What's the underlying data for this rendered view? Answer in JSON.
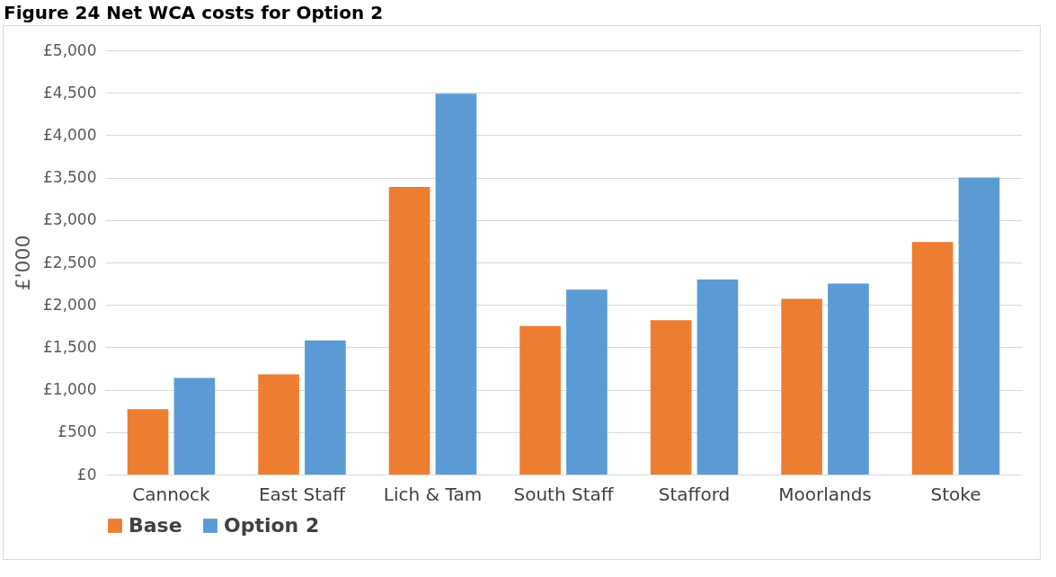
{
  "chart_data": {
    "type": "bar",
    "title": "Figure 24 Net WCA costs for Option 2",
    "ylabel": "£'000",
    "categories": [
      "Cannock",
      "East Staff",
      "Lich & Tam",
      "South Staff",
      "Stafford",
      "Moorlands",
      "Stoke"
    ],
    "series": [
      {
        "name": "Base",
        "color": "#ed7d31",
        "values": [
          770,
          1180,
          3390,
          1750,
          1820,
          2070,
          2740
        ]
      },
      {
        "name": "Option 2",
        "color": "#5b9bd5",
        "values": [
          1140,
          1580,
          4490,
          2180,
          2300,
          2250,
          3500
        ]
      }
    ],
    "ylim": [
      0,
      5000
    ],
    "yticks": [
      {
        "value": 0,
        "label": "£0"
      },
      {
        "value": 500,
        "label": "£500"
      },
      {
        "value": 1000,
        "label": "£1,000"
      },
      {
        "value": 1500,
        "label": "£1,500"
      },
      {
        "value": 2000,
        "label": "£2,000"
      },
      {
        "value": 2500,
        "label": "£2,500"
      },
      {
        "value": 3000,
        "label": "£3,000"
      },
      {
        "value": 3500,
        "label": "£3,500"
      },
      {
        "value": 4000,
        "label": "£4,000"
      },
      {
        "value": 4500,
        "label": "£4,500"
      },
      {
        "value": 5000,
        "label": "£5,000"
      }
    ],
    "grid": "y",
    "legend": "bottom"
  }
}
